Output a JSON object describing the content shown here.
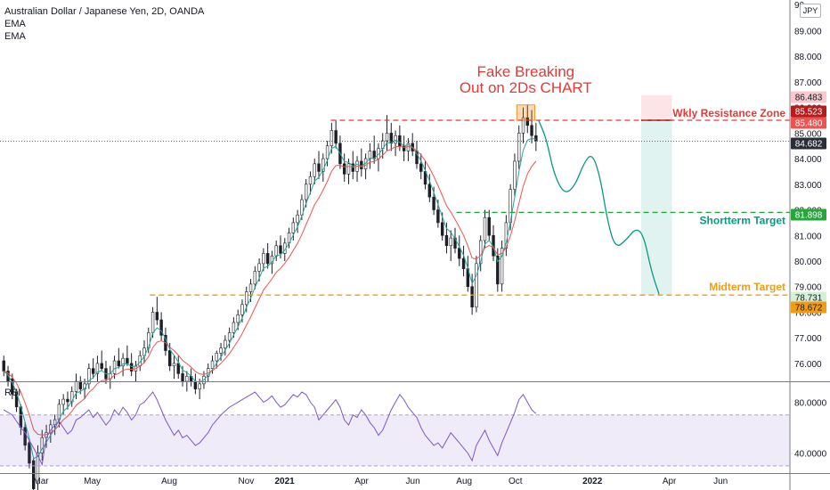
{
  "header": {
    "symbol_title": "Australian Dollar / Japanese Yen, 2D, OANDA",
    "indicator_1": "EMA",
    "indicator_2": "EMA",
    "currency": "JPY"
  },
  "annotations": {
    "headline_line1": "Fake Breaking",
    "headline_line2": "Out on 2Ds CHART",
    "resistance_label": "Wkly Resistance Zone",
    "shortterm_label": "Shortterm Target",
    "midterm_label": "Midterm Target"
  },
  "rsi_pane": {
    "label": "RSI"
  },
  "chart_data": {
    "type": "candlestick",
    "price_axis": {
      "range": [
        75.3,
        90.2
      ],
      "ticks": [
        76,
        77,
        78,
        79,
        80,
        81,
        82,
        83,
        84,
        85,
        86,
        87,
        88,
        89
      ],
      "top_partial_label": "90"
    },
    "rsi_axis": {
      "range": [
        25,
        95
      ],
      "ticks": [
        40,
        80
      ],
      "upper_band": 70,
      "lower_band": 30
    },
    "time_axis": {
      "labels": [
        {
          "label": "Mar",
          "month": 2.5,
          "bold": false
        },
        {
          "label": "May",
          "month": 4.5,
          "bold": false
        },
        {
          "label": "Aug",
          "month": 7.5,
          "bold": false
        },
        {
          "label": "Nov",
          "month": 10.5,
          "bold": false
        },
        {
          "label": "2021",
          "month": 12,
          "bold": true
        },
        {
          "label": "Apr",
          "month": 15,
          "bold": false
        },
        {
          "label": "Jun",
          "month": 17,
          "bold": false
        },
        {
          "label": "Aug",
          "month": 19,
          "bold": false
        },
        {
          "label": "Oct",
          "month": 21,
          "bold": false
        },
        {
          "label": "2022",
          "month": 24,
          "bold": true
        },
        {
          "label": "Apr",
          "month": 27,
          "bold": false
        },
        {
          "label": "Jun",
          "month": 29,
          "bold": false
        }
      ]
    },
    "price_labels": [
      {
        "value": "86.483",
        "price": 86.483,
        "color": "#f8c8cc",
        "text_color": "#131722"
      },
      {
        "value": "85.523",
        "price": 85.523,
        "color": "#b71c1c",
        "text_color": "#ffffff"
      },
      {
        "value": "85.480",
        "price": 85.48,
        "color": "#ef5350",
        "text_color": "#ffffff"
      },
      {
        "value": "84.682",
        "price": 84.682,
        "color": "#2a2e39",
        "text_color": "#ffffff"
      },
      {
        "value": "81.898",
        "price": 81.898,
        "color": "#26a63a",
        "text_color": "#ffffff"
      },
      {
        "value": "78.731",
        "price": 78.731,
        "color": "#d6f0d8",
        "text_color": "#131722"
      },
      {
        "value": "78.672",
        "price": 78.672,
        "color": "#f39c12",
        "text_color": "#131722"
      }
    ],
    "levels": [
      {
        "name": "resistance",
        "price": 85.5,
        "color": "#e53935",
        "dashed": true
      },
      {
        "name": "shortterm",
        "price": 81.9,
        "color": "#26a63a",
        "dashed": true
      },
      {
        "name": "midterm",
        "price": 78.67,
        "color": "#f39c12",
        "dashed": true
      },
      {
        "name": "last-close",
        "price": 84.68,
        "color": "#555555",
        "dotted": true
      }
    ],
    "candles_ohlc": [
      [
        76.1,
        76.3,
        75.5,
        75.7
      ],
      [
        75.7,
        75.9,
        75.1,
        75.3
      ],
      [
        75.4,
        75.6,
        74.6,
        74.8
      ],
      [
        74.9,
        75.0,
        74.1,
        74.3
      ],
      [
        74.3,
        74.4,
        73.2,
        73.5
      ],
      [
        73.5,
        73.7,
        72.6,
        72.8
      ],
      [
        72.9,
        73.0,
        71.9,
        72.1
      ],
      [
        72.2,
        72.3,
        70.9,
        71.1
      ],
      [
        71.3,
        72.8,
        71.0,
        72.5
      ],
      [
        72.5,
        73.4,
        72.2,
        73.1
      ],
      [
        73.1,
        73.6,
        72.7,
        73.3
      ],
      [
        73.3,
        73.8,
        72.9,
        73.6
      ],
      [
        73.6,
        74.0,
        73.2,
        73.8
      ],
      [
        73.8,
        74.6,
        73.5,
        74.4
      ],
      [
        74.4,
        74.8,
        74.0,
        74.6
      ],
      [
        74.6,
        74.9,
        74.2,
        74.5
      ],
      [
        74.5,
        75.1,
        74.3,
        74.9
      ],
      [
        74.9,
        75.6,
        74.6,
        75.3
      ],
      [
        75.3,
        75.5,
        74.8,
        75.0
      ],
      [
        75.0,
        75.4,
        74.6,
        75.2
      ],
      [
        75.2,
        76.0,
        75.0,
        75.8
      ],
      [
        75.8,
        76.2,
        75.4,
        75.6
      ],
      [
        75.6,
        76.3,
        75.3,
        76.0
      ],
      [
        76.0,
        76.5,
        75.7,
        75.8
      ],
      [
        75.8,
        76.1,
        75.2,
        75.4
      ],
      [
        75.4,
        75.9,
        75.0,
        75.6
      ],
      [
        75.6,
        76.3,
        75.4,
        76.1
      ],
      [
        76.1,
        76.6,
        75.8,
        75.9
      ],
      [
        75.9,
        76.4,
        75.5,
        76.2
      ],
      [
        76.2,
        76.7,
        75.9,
        76.0
      ],
      [
        76.0,
        76.4,
        75.5,
        75.7
      ],
      [
        75.7,
        76.1,
        75.3,
        75.9
      ],
      [
        75.9,
        76.5,
        75.7,
        76.3
      ],
      [
        76.3,
        76.9,
        76.0,
        76.6
      ],
      [
        76.6,
        77.4,
        76.4,
        77.2
      ],
      [
        77.2,
        78.2,
        77.0,
        78.0
      ],
      [
        78.0,
        78.6,
        77.5,
        77.7
      ],
      [
        77.7,
        78.0,
        76.9,
        77.1
      ],
      [
        77.1,
        77.4,
        76.3,
        76.5
      ],
      [
        76.5,
        76.8,
        75.7,
        75.9
      ],
      [
        75.9,
        76.3,
        75.4,
        76.0
      ],
      [
        76.0,
        76.3,
        75.4,
        75.6
      ],
      [
        75.6,
        75.9,
        75.1,
        75.3
      ],
      [
        75.3,
        75.7,
        74.9,
        75.5
      ],
      [
        75.5,
        75.8,
        75.1,
        75.3
      ],
      [
        75.3,
        75.6,
        74.8,
        75.0
      ],
      [
        75.0,
        75.4,
        74.6,
        75.2
      ],
      [
        75.2,
        75.7,
        75.0,
        75.5
      ],
      [
        75.5,
        76.0,
        75.3,
        75.8
      ],
      [
        75.8,
        76.3,
        75.6,
        76.1
      ],
      [
        76.1,
        76.5,
        75.8,
        76.4
      ],
      [
        76.4,
        76.8,
        76.1,
        76.6
      ],
      [
        76.6,
        77.1,
        76.3,
        76.9
      ],
      [
        76.9,
        77.4,
        76.6,
        77.2
      ],
      [
        77.2,
        77.8,
        77.0,
        77.6
      ],
      [
        77.6,
        78.1,
        77.3,
        77.9
      ],
      [
        77.9,
        78.5,
        77.6,
        78.3
      ],
      [
        78.3,
        79.0,
        78.0,
        78.8
      ],
      [
        78.8,
        79.3,
        78.4,
        79.1
      ],
      [
        79.1,
        79.8,
        78.9,
        79.6
      ],
      [
        79.6,
        80.1,
        79.2,
        79.9
      ],
      [
        79.9,
        80.5,
        79.6,
        80.3
      ],
      [
        80.3,
        80.7,
        79.7,
        79.9
      ],
      [
        79.9,
        80.4,
        79.5,
        80.2
      ],
      [
        80.2,
        80.8,
        80.0,
        80.6
      ],
      [
        80.6,
        81.0,
        80.1,
        80.3
      ],
      [
        80.3,
        80.9,
        80.0,
        80.7
      ],
      [
        80.7,
        81.3,
        80.5,
        81.1
      ],
      [
        81.1,
        81.7,
        80.8,
        81.5
      ],
      [
        81.5,
        82.0,
        81.1,
        81.8
      ],
      [
        81.8,
        82.6,
        81.6,
        82.4
      ],
      [
        82.4,
        83.2,
        82.1,
        83.0
      ],
      [
        83.0,
        83.5,
        82.6,
        83.3
      ],
      [
        83.3,
        84.0,
        83.0,
        83.8
      ],
      [
        83.8,
        84.3,
        83.2,
        83.5
      ],
      [
        83.5,
        84.2,
        83.1,
        84.0
      ],
      [
        84.0,
        84.7,
        83.7,
        84.5
      ],
      [
        84.5,
        85.4,
        84.2,
        85.1
      ],
      [
        85.1,
        85.5,
        84.4,
        84.6
      ],
      [
        84.6,
        84.9,
        83.6,
        83.8
      ],
      [
        83.8,
        84.2,
        83.1,
        83.4
      ],
      [
        83.4,
        84.0,
        83.0,
        83.8
      ],
      [
        83.8,
        84.3,
        83.2,
        83.5
      ],
      [
        83.5,
        84.1,
        83.1,
        83.9
      ],
      [
        83.9,
        84.4,
        83.3,
        83.6
      ],
      [
        83.6,
        84.2,
        83.2,
        84.0
      ],
      [
        84.0,
        84.6,
        83.6,
        84.3
      ],
      [
        84.3,
        84.9,
        83.8,
        84.0
      ],
      [
        84.0,
        84.6,
        83.5,
        84.4
      ],
      [
        84.4,
        85.0,
        84.0,
        84.7
      ],
      [
        84.7,
        85.7,
        84.3,
        85.0
      ],
      [
        85.0,
        85.4,
        84.3,
        84.6
      ],
      [
        84.6,
        85.1,
        84.1,
        84.9
      ],
      [
        84.9,
        85.3,
        84.3,
        84.5
      ],
      [
        84.5,
        84.9,
        83.9,
        84.3
      ],
      [
        84.3,
        84.8,
        83.9,
        84.6
      ],
      [
        84.6,
        85.0,
        84.1,
        84.3
      ],
      [
        84.3,
        84.7,
        83.6,
        83.8
      ],
      [
        83.8,
        84.2,
        83.2,
        83.5
      ],
      [
        83.5,
        83.9,
        82.8,
        83.0
      ],
      [
        83.0,
        83.4,
        82.3,
        82.5
      ],
      [
        82.5,
        82.9,
        81.8,
        82.0
      ],
      [
        82.0,
        82.4,
        81.3,
        81.5
      ],
      [
        81.5,
        81.9,
        80.8,
        81.0
      ],
      [
        81.0,
        81.5,
        80.3,
        80.6
      ],
      [
        80.6,
        81.2,
        80.0,
        80.9
      ],
      [
        80.9,
        81.3,
        80.3,
        80.5
      ],
      [
        80.5,
        81.0,
        79.8,
        80.1
      ],
      [
        80.1,
        80.6,
        79.4,
        79.7
      ],
      [
        79.7,
        80.2,
        78.8,
        79.0
      ],
      [
        79.0,
        79.5,
        77.9,
        78.2
      ],
      [
        78.2,
        80.2,
        78.0,
        79.9
      ],
      [
        79.9,
        81.0,
        79.6,
        80.8
      ],
      [
        80.8,
        82.0,
        80.5,
        81.7
      ],
      [
        81.7,
        82.0,
        80.8,
        81.0
      ],
      [
        81.0,
        81.4,
        80.0,
        80.2
      ],
      [
        80.2,
        80.5,
        78.8,
        79.1
      ],
      [
        79.1,
        80.8,
        78.8,
        80.5
      ],
      [
        80.5,
        81.8,
        80.2,
        81.5
      ],
      [
        81.5,
        83.0,
        81.2,
        82.8
      ],
      [
        82.8,
        84.2,
        82.5,
        83.9
      ],
      [
        83.9,
        85.3,
        83.6,
        85.0
      ],
      [
        85.0,
        86.0,
        84.6,
        85.6
      ],
      [
        85.6,
        86.1,
        85.0,
        85.3
      ],
      [
        85.3,
        85.9,
        84.6,
        84.9
      ],
      [
        84.9,
        85.4,
        84.3,
        84.7
      ]
    ],
    "rsi_values": [
      74,
      72,
      70,
      65,
      60,
      56,
      50,
      44,
      38,
      31,
      52,
      58,
      62,
      65,
      60,
      55,
      58,
      66,
      68,
      71,
      74,
      68,
      72,
      67,
      62,
      66,
      74,
      70,
      76,
      72,
      66,
      70,
      78,
      80,
      84,
      88,
      82,
      74,
      66,
      60,
      54,
      58,
      52,
      54,
      50,
      46,
      48,
      52,
      56,
      62,
      66,
      70,
      73,
      76,
      78,
      80,
      82,
      84,
      86,
      88,
      84,
      80,
      82,
      85,
      80,
      76,
      78,
      82,
      86,
      84,
      88,
      86,
      80,
      76,
      66,
      70,
      74,
      78,
      82,
      76,
      66,
      62,
      70,
      68,
      74,
      70,
      64,
      60,
      54,
      58,
      66,
      74,
      80,
      86,
      82,
      76,
      72,
      68,
      60,
      54,
      50,
      46,
      48,
      44,
      50,
      56,
      52,
      48,
      44,
      40,
      34,
      46,
      52,
      58,
      50,
      44,
      38,
      48,
      56,
      64,
      72,
      82,
      86,
      80,
      74,
      71
    ],
    "forecast_path_months": [
      [
        21.9,
        85.5
      ],
      [
        22.2,
        84.8
      ],
      [
        22.5,
        83.4
      ],
      [
        22.9,
        82.6
      ],
      [
        23.3,
        82.9
      ],
      [
        23.7,
        83.9
      ],
      [
        24.0,
        84.2
      ],
      [
        24.3,
        83.3
      ],
      [
        24.6,
        81.5
      ],
      [
        24.9,
        80.5
      ],
      [
        25.3,
        80.8
      ],
      [
        25.7,
        81.3
      ],
      [
        26.0,
        81.0
      ],
      [
        26.3,
        79.6
      ],
      [
        26.6,
        78.7
      ]
    ],
    "trade_box": {
      "start_month": 25.9,
      "end_month": 27.1,
      "entry": 85.5,
      "stop": 86.48,
      "target": 78.67
    },
    "breakout_box": {
      "start_month": 21.05,
      "end_month": 21.75,
      "bottom": 85.5,
      "top": 86.1
    },
    "ema_fast": "derived-from-candles",
    "ema_slow": "derived-from-candles"
  }
}
